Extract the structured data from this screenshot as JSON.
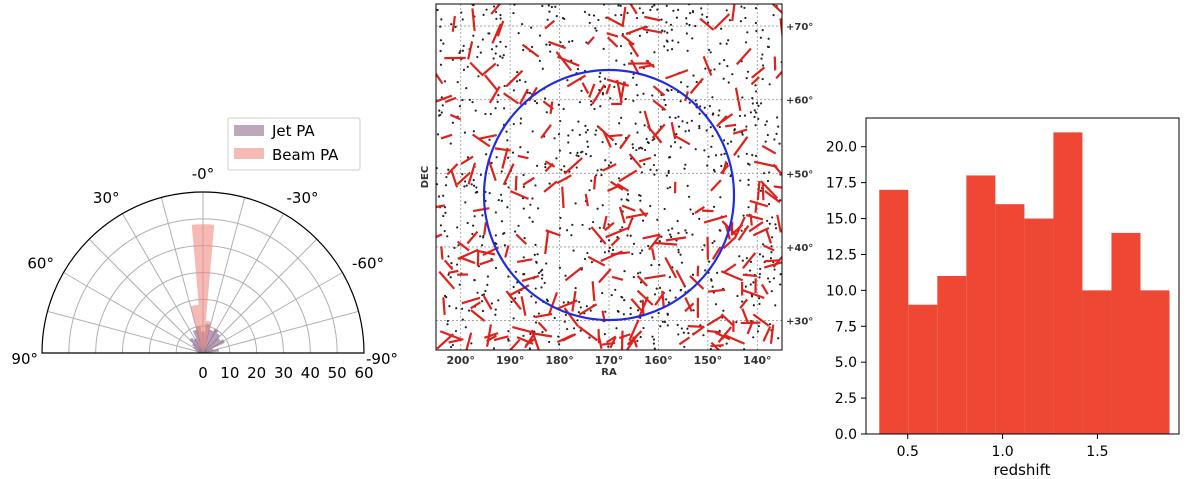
{
  "chart_data": [
    {
      "type": "bar",
      "subtype": "polar-half-histogram",
      "theta_ticks": [
        "90°",
        "60°",
        "30°",
        "-0°",
        "-30°",
        "-60°",
        "-90°"
      ],
      "radial_ticks": [
        "0",
        "10",
        "20",
        "30",
        "40",
        "50",
        "60"
      ],
      "r_max": 60,
      "legend": {
        "placement": "top-right",
        "entries": [
          "Jet PA",
          "Beam PA"
        ]
      },
      "series": [
        {
          "name": "Jet PA",
          "color": "#7a4f7a",
          "bins": [
            {
              "theta": -80,
              "value": 6
            },
            {
              "theta": -70,
              "value": 4
            },
            {
              "theta": -60,
              "value": 9
            },
            {
              "theta": -50,
              "value": 8
            },
            {
              "theta": -40,
              "value": 9
            },
            {
              "theta": -30,
              "value": 10
            },
            {
              "theta": -20,
              "value": 9
            },
            {
              "theta": -10,
              "value": 11
            },
            {
              "theta": 0,
              "value": 8
            },
            {
              "theta": 10,
              "value": 10
            },
            {
              "theta": 20,
              "value": 9
            },
            {
              "theta": 30,
              "value": 6
            },
            {
              "theta": 40,
              "value": 7
            },
            {
              "theta": 50,
              "value": 5
            },
            {
              "theta": 60,
              "value": 4
            },
            {
              "theta": 70,
              "value": 3
            },
            {
              "theta": 80,
              "value": 2
            }
          ]
        },
        {
          "name": "Beam PA",
          "color": "#f08a80",
          "bins": [
            {
              "theta": -20,
              "value": 5
            },
            {
              "theta": -10,
              "value": 12
            },
            {
              "theta": 0,
              "value": 48
            },
            {
              "theta": 10,
              "value": 18
            },
            {
              "theta": 20,
              "value": 4
            }
          ]
        }
      ]
    },
    {
      "type": "scatter",
      "subtype": "sky-map",
      "xlabel": "RA",
      "ylabel": "DEC",
      "x_tick_labels": [
        "200°",
        "190°",
        "180°",
        "170°",
        "160°",
        "150°",
        "140°"
      ],
      "y_tick_labels": [
        "+30°",
        "+40°",
        "+50°",
        "+60°",
        "+70°"
      ],
      "xlim": [
        205,
        135
      ],
      "ylim": [
        26,
        73
      ],
      "grid": true,
      "colors": {
        "points": "#222222",
        "vectors": "#e0201a",
        "circle": "#1f2ce0"
      }
    },
    {
      "type": "bar",
      "subtype": "histogram",
      "xlabel": "redshift",
      "ylabel": "",
      "x_ticks": [
        0.5,
        1.0,
        1.5
      ],
      "x_tick_labels": [
        "0.5",
        "1.0",
        "1.5"
      ],
      "y_ticks": [
        0,
        2.5,
        5,
        7.5,
        10,
        12.5,
        15,
        17.5,
        20
      ],
      "y_tick_labels": [
        "0.0",
        "2.5",
        "5.0",
        "7.5",
        "10.0",
        "12.5",
        "15.0",
        "17.5",
        "20.0"
      ],
      "xlim": [
        0.28,
        1.93
      ],
      "ylim": [
        0,
        22
      ],
      "bin_edges": [
        0.35,
        0.503,
        0.656,
        0.809,
        0.962,
        1.115,
        1.268,
        1.421,
        1.574,
        1.727,
        1.88
      ],
      "values": [
        17,
        9,
        11,
        18,
        16,
        15,
        21,
        10,
        14,
        10
      ],
      "color": "#ee4733"
    }
  ]
}
